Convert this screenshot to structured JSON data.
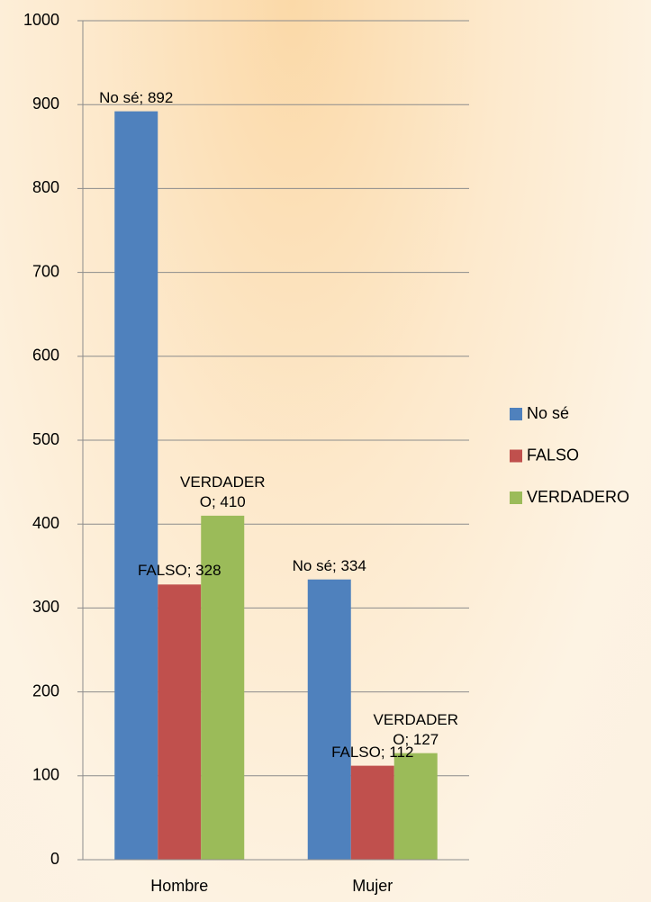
{
  "chart_data": {
    "type": "bar",
    "categories": [
      "Hombre",
      "Mujer"
    ],
    "series": [
      {
        "name": "No sé",
        "color": "#4f81bd",
        "values": [
          892,
          334
        ],
        "value_labels": [
          "No sé; 892",
          "No sé; 334"
        ]
      },
      {
        "name": "FALSO",
        "color": "#c0504d",
        "values": [
          328,
          112
        ],
        "value_labels": [
          "FALSO; 328",
          "FALSO; 112"
        ]
      },
      {
        "name": "VERDADERO",
        "color": "#9bbb59",
        "values": [
          410,
          127
        ],
        "value_labels": [
          "VERDADERO; 410",
          "VERDADERO; 127"
        ]
      }
    ],
    "ylim": [
      0,
      1000
    ],
    "yticks": [
      0,
      100,
      200,
      300,
      400,
      500,
      600,
      700,
      800,
      900,
      1000
    ],
    "grid": true,
    "legend": "right"
  }
}
